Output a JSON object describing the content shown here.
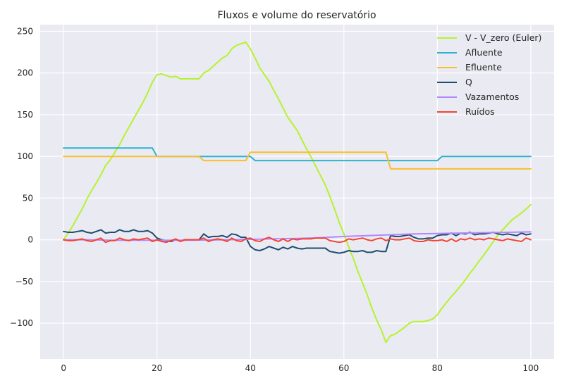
{
  "chart_data": {
    "type": "line",
    "title": "Fluxos e volume do reservatório",
    "xlabel": "",
    "ylabel": "",
    "xlim": [
      -5,
      105
    ],
    "ylim": [
      -143,
      258
    ],
    "xticks": [
      0,
      20,
      40,
      60,
      80,
      100
    ],
    "yticks": [
      -100,
      -50,
      0,
      50,
      100,
      150,
      200,
      250
    ],
    "grid": true,
    "legend_position": "top-right",
    "background": "#eaeaf2",
    "series": [
      {
        "name": "V - V_zero (Euler)",
        "color": "#b6f22e",
        "x": [
          0,
          1,
          2,
          3,
          4,
          5,
          6,
          7,
          8,
          9,
          10,
          11,
          12,
          13,
          14,
          15,
          16,
          17,
          18,
          19,
          20,
          21,
          22,
          23,
          24,
          25,
          26,
          27,
          28,
          29,
          30,
          31,
          32,
          33,
          34,
          35,
          36,
          37,
          38,
          39,
          40,
          41,
          42,
          43,
          44,
          45,
          46,
          47,
          48,
          49,
          50,
          51,
          52,
          53,
          54,
          55,
          56,
          57,
          58,
          59,
          60,
          61,
          62,
          63,
          64,
          65,
          66,
          67,
          68,
          69,
          70,
          71,
          72,
          73,
          74,
          75,
          76,
          77,
          78,
          79,
          80,
          81,
          82,
          83,
          84,
          85,
          86,
          87,
          88,
          89,
          90,
          91,
          92,
          93,
          94,
          95,
          96,
          97,
          98,
          99,
          100
        ],
        "values": [
          0,
          8,
          17,
          27,
          37,
          49,
          59,
          68,
          78,
          89,
          96,
          105,
          114,
          125,
          135,
          145,
          155,
          165,
          176,
          189,
          198,
          199,
          197,
          195,
          196,
          193,
          193,
          193,
          193,
          193,
          200,
          203,
          208,
          213,
          218,
          221,
          229,
          233,
          235,
          237,
          229,
          218,
          206,
          198,
          190,
          179,
          169,
          158,
          147,
          139,
          131,
          120,
          109,
          99,
          88,
          77,
          66,
          52,
          37,
          21,
          7,
          -8,
          -22,
          -38,
          -52,
          -66,
          -82,
          -96,
          -108,
          -123,
          -115,
          -113,
          -109,
          -105,
          -100,
          -98,
          -98,
          -98,
          -97,
          -95,
          -90,
          -82,
          -75,
          -68,
          -62,
          -55,
          -48,
          -40,
          -33,
          -25,
          -18,
          -10,
          -2,
          6,
          12,
          18,
          24,
          28,
          32,
          37,
          42
        ]
      },
      {
        "name": "Afluente",
        "color": "#2bb3cf",
        "x": [
          0,
          19,
          20,
          40,
          41,
          80,
          81,
          100
        ],
        "values": [
          110,
          110,
          100,
          100,
          95,
          95,
          100,
          100
        ]
      },
      {
        "name": "Efluente",
        "color": "#fbbf2b",
        "x": [
          0,
          29,
          30,
          39,
          40,
          69,
          70,
          100
        ],
        "values": [
          100,
          100,
          95,
          95,
          105,
          105,
          85,
          85
        ]
      },
      {
        "name": "Q",
        "color": "#1e4d6e",
        "x": [
          0,
          1,
          2,
          3,
          4,
          5,
          6,
          7,
          8,
          9,
          10,
          11,
          12,
          13,
          14,
          15,
          16,
          17,
          18,
          19,
          20,
          21,
          22,
          23,
          24,
          25,
          26,
          27,
          28,
          29,
          30,
          31,
          32,
          33,
          34,
          35,
          36,
          37,
          38,
          39,
          40,
          41,
          42,
          43,
          44,
          45,
          46,
          47,
          48,
          49,
          50,
          51,
          52,
          53,
          54,
          55,
          56,
          57,
          58,
          59,
          60,
          61,
          62,
          63,
          64,
          65,
          66,
          67,
          68,
          69,
          70,
          71,
          72,
          73,
          74,
          75,
          76,
          77,
          78,
          79,
          80,
          81,
          82,
          83,
          84,
          85,
          86,
          87,
          88,
          89,
          90,
          91,
          92,
          93,
          94,
          95,
          96,
          97,
          98,
          99,
          100
        ],
        "values": [
          10,
          9,
          9,
          10,
          11,
          9,
          8,
          10,
          12,
          8,
          9,
          9,
          12,
          10,
          10,
          12,
          10,
          10,
          11,
          8,
          2,
          0,
          -1,
          -2,
          0,
          -1,
          0,
          0,
          0,
          0,
          7,
          3,
          4,
          4,
          5,
          3,
          7,
          6,
          3,
          3,
          -8,
          -12,
          -13,
          -11,
          -8,
          -10,
          -12,
          -9,
          -11,
          -8,
          -10,
          -11,
          -10,
          -10,
          -10,
          -10,
          -10,
          -14,
          -15,
          -16,
          -15,
          -13,
          -14,
          -14,
          -13,
          -15,
          -15,
          -13,
          -14,
          -14,
          5,
          4,
          4,
          5,
          6,
          3,
          1,
          1,
          2,
          2,
          5,
          6,
          6,
          8,
          5,
          8,
          7,
          9,
          6,
          7,
          7,
          8,
          9,
          7,
          6,
          7,
          6,
          5,
          8,
          6,
          7
        ]
      },
      {
        "name": "Vazamentos",
        "color": "#b388ff",
        "x": [
          0,
          5,
          10,
          15,
          20,
          25,
          30,
          35,
          40,
          45,
          50,
          55,
          60,
          65,
          70,
          75,
          80,
          85,
          90,
          95,
          100
        ],
        "values": [
          0,
          0,
          -0.5,
          -0.5,
          -0.5,
          -0.5,
          -0.3,
          0,
          0.5,
          1,
          1.5,
          2.5,
          4,
          5,
          6,
          7,
          7.5,
          8,
          8.5,
          9,
          9.5
        ]
      },
      {
        "name": "Ruídos",
        "color": "#f44336",
        "x": [
          0,
          1,
          2,
          3,
          4,
          5,
          6,
          7,
          8,
          9,
          10,
          11,
          12,
          13,
          14,
          15,
          16,
          17,
          18,
          19,
          20,
          21,
          22,
          23,
          24,
          25,
          26,
          27,
          28,
          29,
          30,
          31,
          32,
          33,
          34,
          35,
          36,
          37,
          38,
          39,
          40,
          41,
          42,
          43,
          44,
          45,
          46,
          47,
          48,
          49,
          50,
          51,
          52,
          53,
          54,
          55,
          56,
          57,
          58,
          59,
          60,
          61,
          62,
          63,
          64,
          65,
          66,
          67,
          68,
          69,
          70,
          71,
          72,
          73,
          74,
          75,
          76,
          77,
          78,
          79,
          80,
          81,
          82,
          83,
          84,
          85,
          86,
          87,
          88,
          89,
          90,
          91,
          92,
          93,
          94,
          95,
          96,
          97,
          98,
          99,
          100
        ],
        "values": [
          0,
          -1,
          -1,
          0,
          1,
          -1,
          -2,
          0,
          2,
          -3,
          -1,
          -1,
          2,
          0,
          -1,
          1,
          0,
          1,
          2,
          -2,
          0,
          -2,
          -3,
          -1,
          1,
          -2,
          0,
          0,
          0,
          0,
          2,
          -2,
          0,
          1,
          0,
          -2,
          2,
          -1,
          -2,
          1,
          2,
          -1,
          -2,
          1,
          3,
          0,
          -2,
          1,
          -2,
          1,
          0,
          1,
          1,
          1,
          2,
          2,
          2,
          -1,
          -2,
          -3,
          -2,
          1,
          0,
          1,
          2,
          0,
          -1,
          1,
          2,
          -1,
          1,
          0,
          0,
          1,
          2,
          -1,
          -2,
          -2,
          0,
          -1,
          -1,
          0,
          -2,
          1,
          -2,
          1,
          0,
          2,
          0,
          1,
          0,
          2,
          1,
          0,
          -1,
          1,
          0,
          -1,
          -2,
          2,
          0
        ]
      }
    ]
  }
}
